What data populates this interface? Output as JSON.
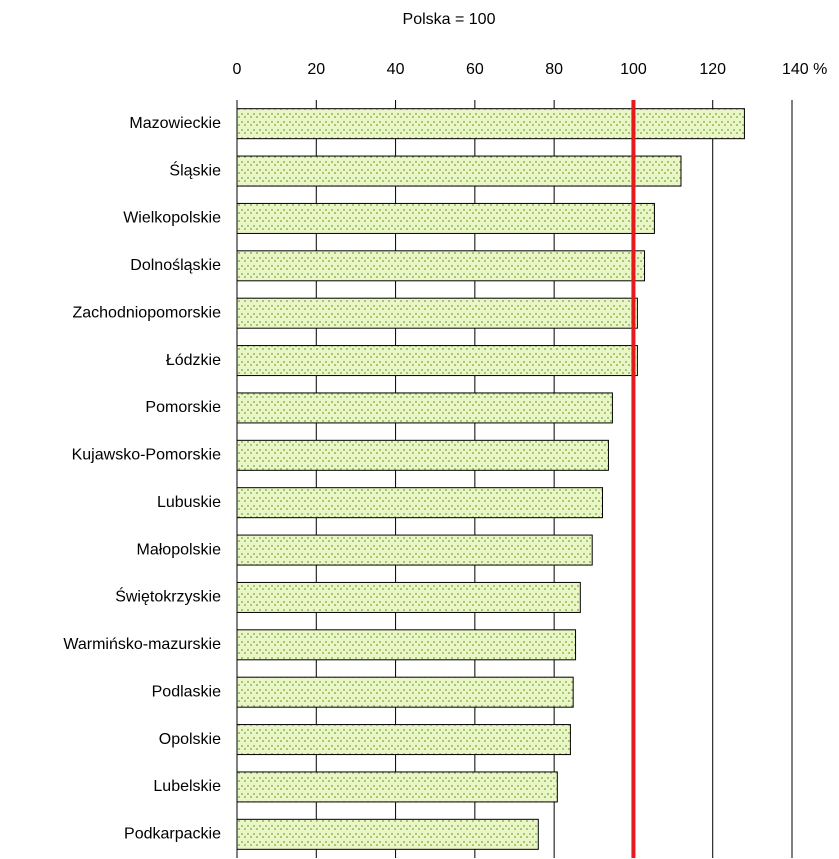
{
  "chart_data": {
    "type": "bar",
    "orientation": "horizontal",
    "title": "Polska = 100",
    "categories": [
      "Mazowieckie",
      "Śląskie",
      "Wielkopolskie",
      "Dolnośląskie",
      "Zachodniopomorskie",
      "Łódzkie",
      "Pomorskie",
      "Kujawsko-Pomorskie",
      "Lubuskie",
      "Małopolskie",
      "Świętokrzyskie",
      "Warmińsko-mazurskie",
      "Podlaskie",
      "Opolskie",
      "Lubelskie",
      "Podkarpackie"
    ],
    "values": [
      128,
      112,
      105.3,
      102.8,
      101,
      101,
      94.7,
      93.7,
      92.2,
      89.6,
      86.6,
      85.4,
      84.8,
      84.1,
      80.8,
      76
    ],
    "color": "#eaf6c8",
    "pattern_color": "#6fa832",
    "xlim": [
      0,
      140
    ],
    "xticks": [
      0,
      20,
      40,
      60,
      80,
      100,
      120,
      {
        "value": 140,
        "label": "140 %"
      }
    ],
    "grid": true,
    "reference_line": 100,
    "reference_color": "#e8191c"
  }
}
